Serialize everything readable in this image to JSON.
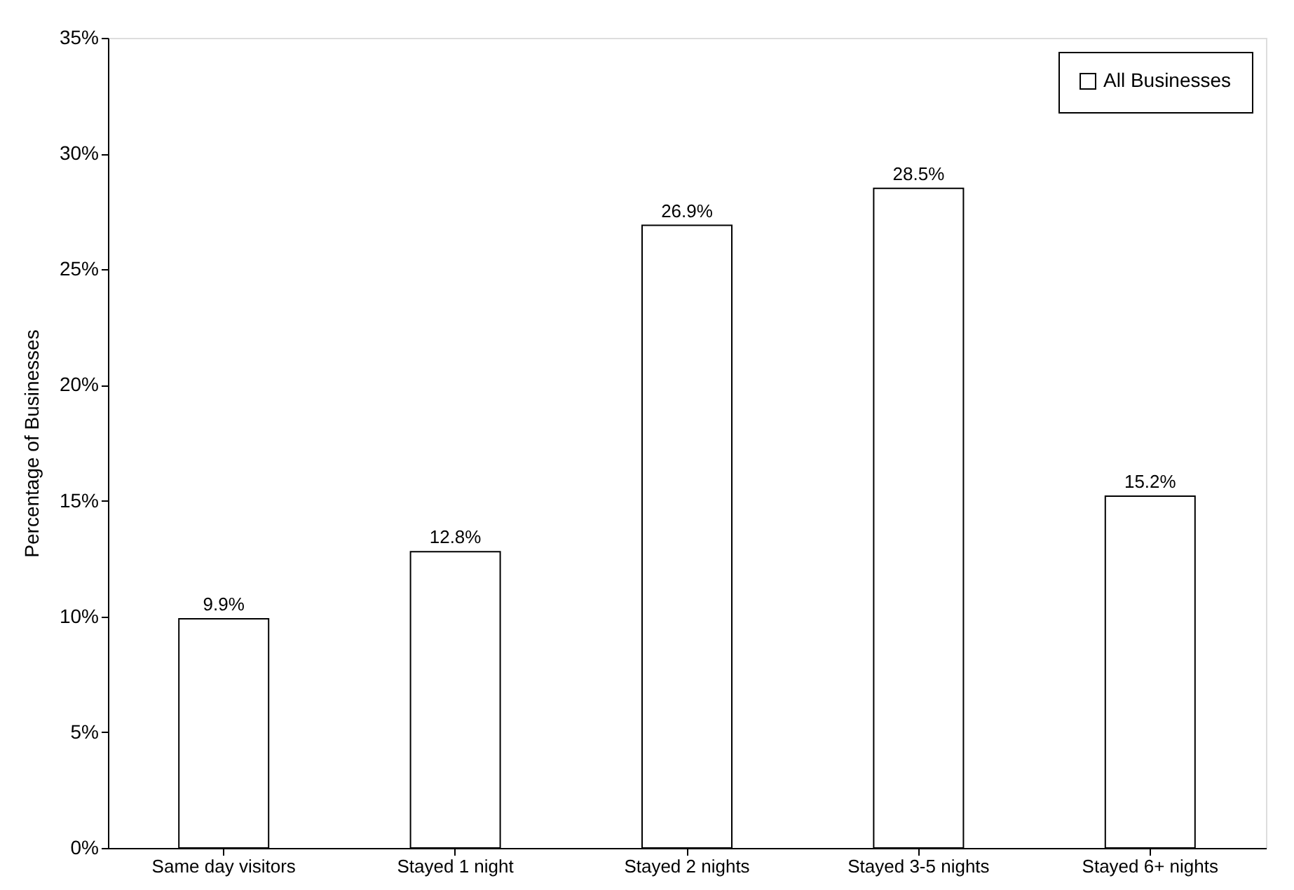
{
  "chart_data": {
    "type": "bar",
    "ylabel": "Percentage of Businesses",
    "categories": [
      "Same day visitors",
      "Stayed 1 night",
      "Stayed 2 nights",
      "Stayed 3-5 nights",
      "Stayed 6+ nights"
    ],
    "series": [
      {
        "name": "All Businesses",
        "color": "#ffffff",
        "values": [
          9.9,
          12.8,
          26.9,
          28.5,
          15.2
        ],
        "value_labels": [
          "9.9%",
          "12.8%",
          "26.9%",
          "28.5%",
          "15.2%"
        ]
      }
    ],
    "ylim": [
      0,
      35
    ],
    "yticks": [
      {
        "value": 0,
        "label": "0%"
      },
      {
        "value": 5,
        "label": "5%"
      },
      {
        "value": 10,
        "label": "10%"
      },
      {
        "value": 15,
        "label": "15%"
      },
      {
        "value": 20,
        "label": "20%"
      },
      {
        "value": 25,
        "label": "25%"
      },
      {
        "value": 30,
        "label": "30%"
      },
      {
        "value": 35,
        "label": "35%"
      }
    ],
    "grid": false,
    "legend": "top right"
  }
}
